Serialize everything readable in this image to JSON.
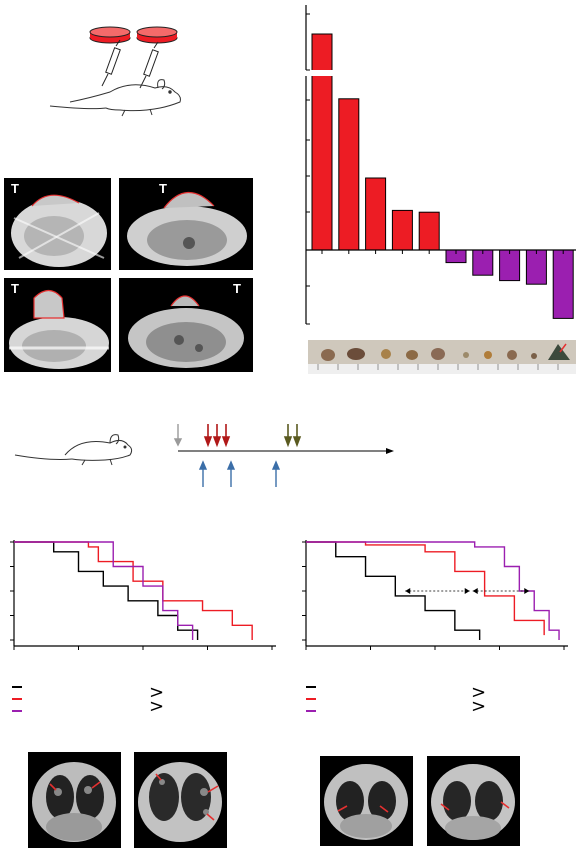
{
  "panelA": {
    "scans": [
      {
        "label": "T"
      },
      {
        "label": "T"
      },
      {
        "label": "T"
      },
      {
        "label": "T"
      }
    ]
  },
  "panelB": {
    "chart_data": {
      "type": "bar",
      "title": "",
      "xlabel": "",
      "ylabel": "",
      "axis_break": true,
      "series": [
        {
          "color": "#ed1c24",
          "values": [
            9.5,
            4.2,
            2.0,
            1.1,
            1.05
          ]
        },
        {
          "color": "#9b1fb0",
          "values": [
            -0.35,
            -0.7,
            -0.85,
            -0.95,
            -1.9
          ]
        }
      ],
      "colors": {
        "increase": "#ed1c24",
        "decrease": "#9b1fb0"
      }
    }
  },
  "panelC": {
    "timeline": {
      "arrows_above": [
        {
          "color": "#9a9a9a",
          "count": 1
        },
        {
          "color": "#b01818",
          "count": 3
        },
        {
          "color": "#5a5a20",
          "count": 2
        }
      ],
      "arrows_below": {
        "color": "#3b6ea8",
        "count": 3
      }
    }
  },
  "panelD": {
    "chart_data": [
      {
        "type": "line",
        "subtype": "kaplan-meier",
        "series": [
          {
            "color": "#000000",
            "x": [
              0,
              40,
              65,
              90,
              115,
              145,
              165,
              185
            ],
            "y": [
              100,
              90,
              70,
              55,
              40,
              25,
              10,
              0
            ]
          },
          {
            "color": "#ed1c24",
            "x": [
              0,
              75,
              85,
              120,
              150,
              190,
              220,
              240
            ],
            "y": [
              100,
              95,
              80,
              60,
              40,
              30,
              15,
              0
            ]
          },
          {
            "color": "#9b1fb0",
            "x": [
              0,
              80,
              100,
              130,
              150,
              165,
              180
            ],
            "y": [
              100,
              100,
              75,
              55,
              30,
              15,
              0
            ]
          }
        ],
        "significance_symbol": ">"
      },
      {
        "type": "line",
        "subtype": "kaplan-meier",
        "series": [
          {
            "color": "#000000",
            "x": [
              0,
              30,
              60,
              90,
              120,
              150,
              175
            ],
            "y": [
              100,
              85,
              65,
              45,
              30,
              10,
              0
            ]
          },
          {
            "color": "#ed1c24",
            "x": [
              0,
              60,
              120,
              150,
              180,
              210,
              240
            ],
            "y": [
              100,
              97,
              90,
              70,
              45,
              20,
              5
            ]
          },
          {
            "color": "#9b1fb0",
            "x": [
              0,
              170,
              200,
              215,
              230,
              245,
              255
            ],
            "y": [
              100,
              95,
              75,
              50,
              30,
              10,
              0
            ]
          }
        ],
        "significance_symbol": ">"
      }
    ]
  },
  "panelE": {
    "scans_left": 2,
    "scans_right": 2
  }
}
